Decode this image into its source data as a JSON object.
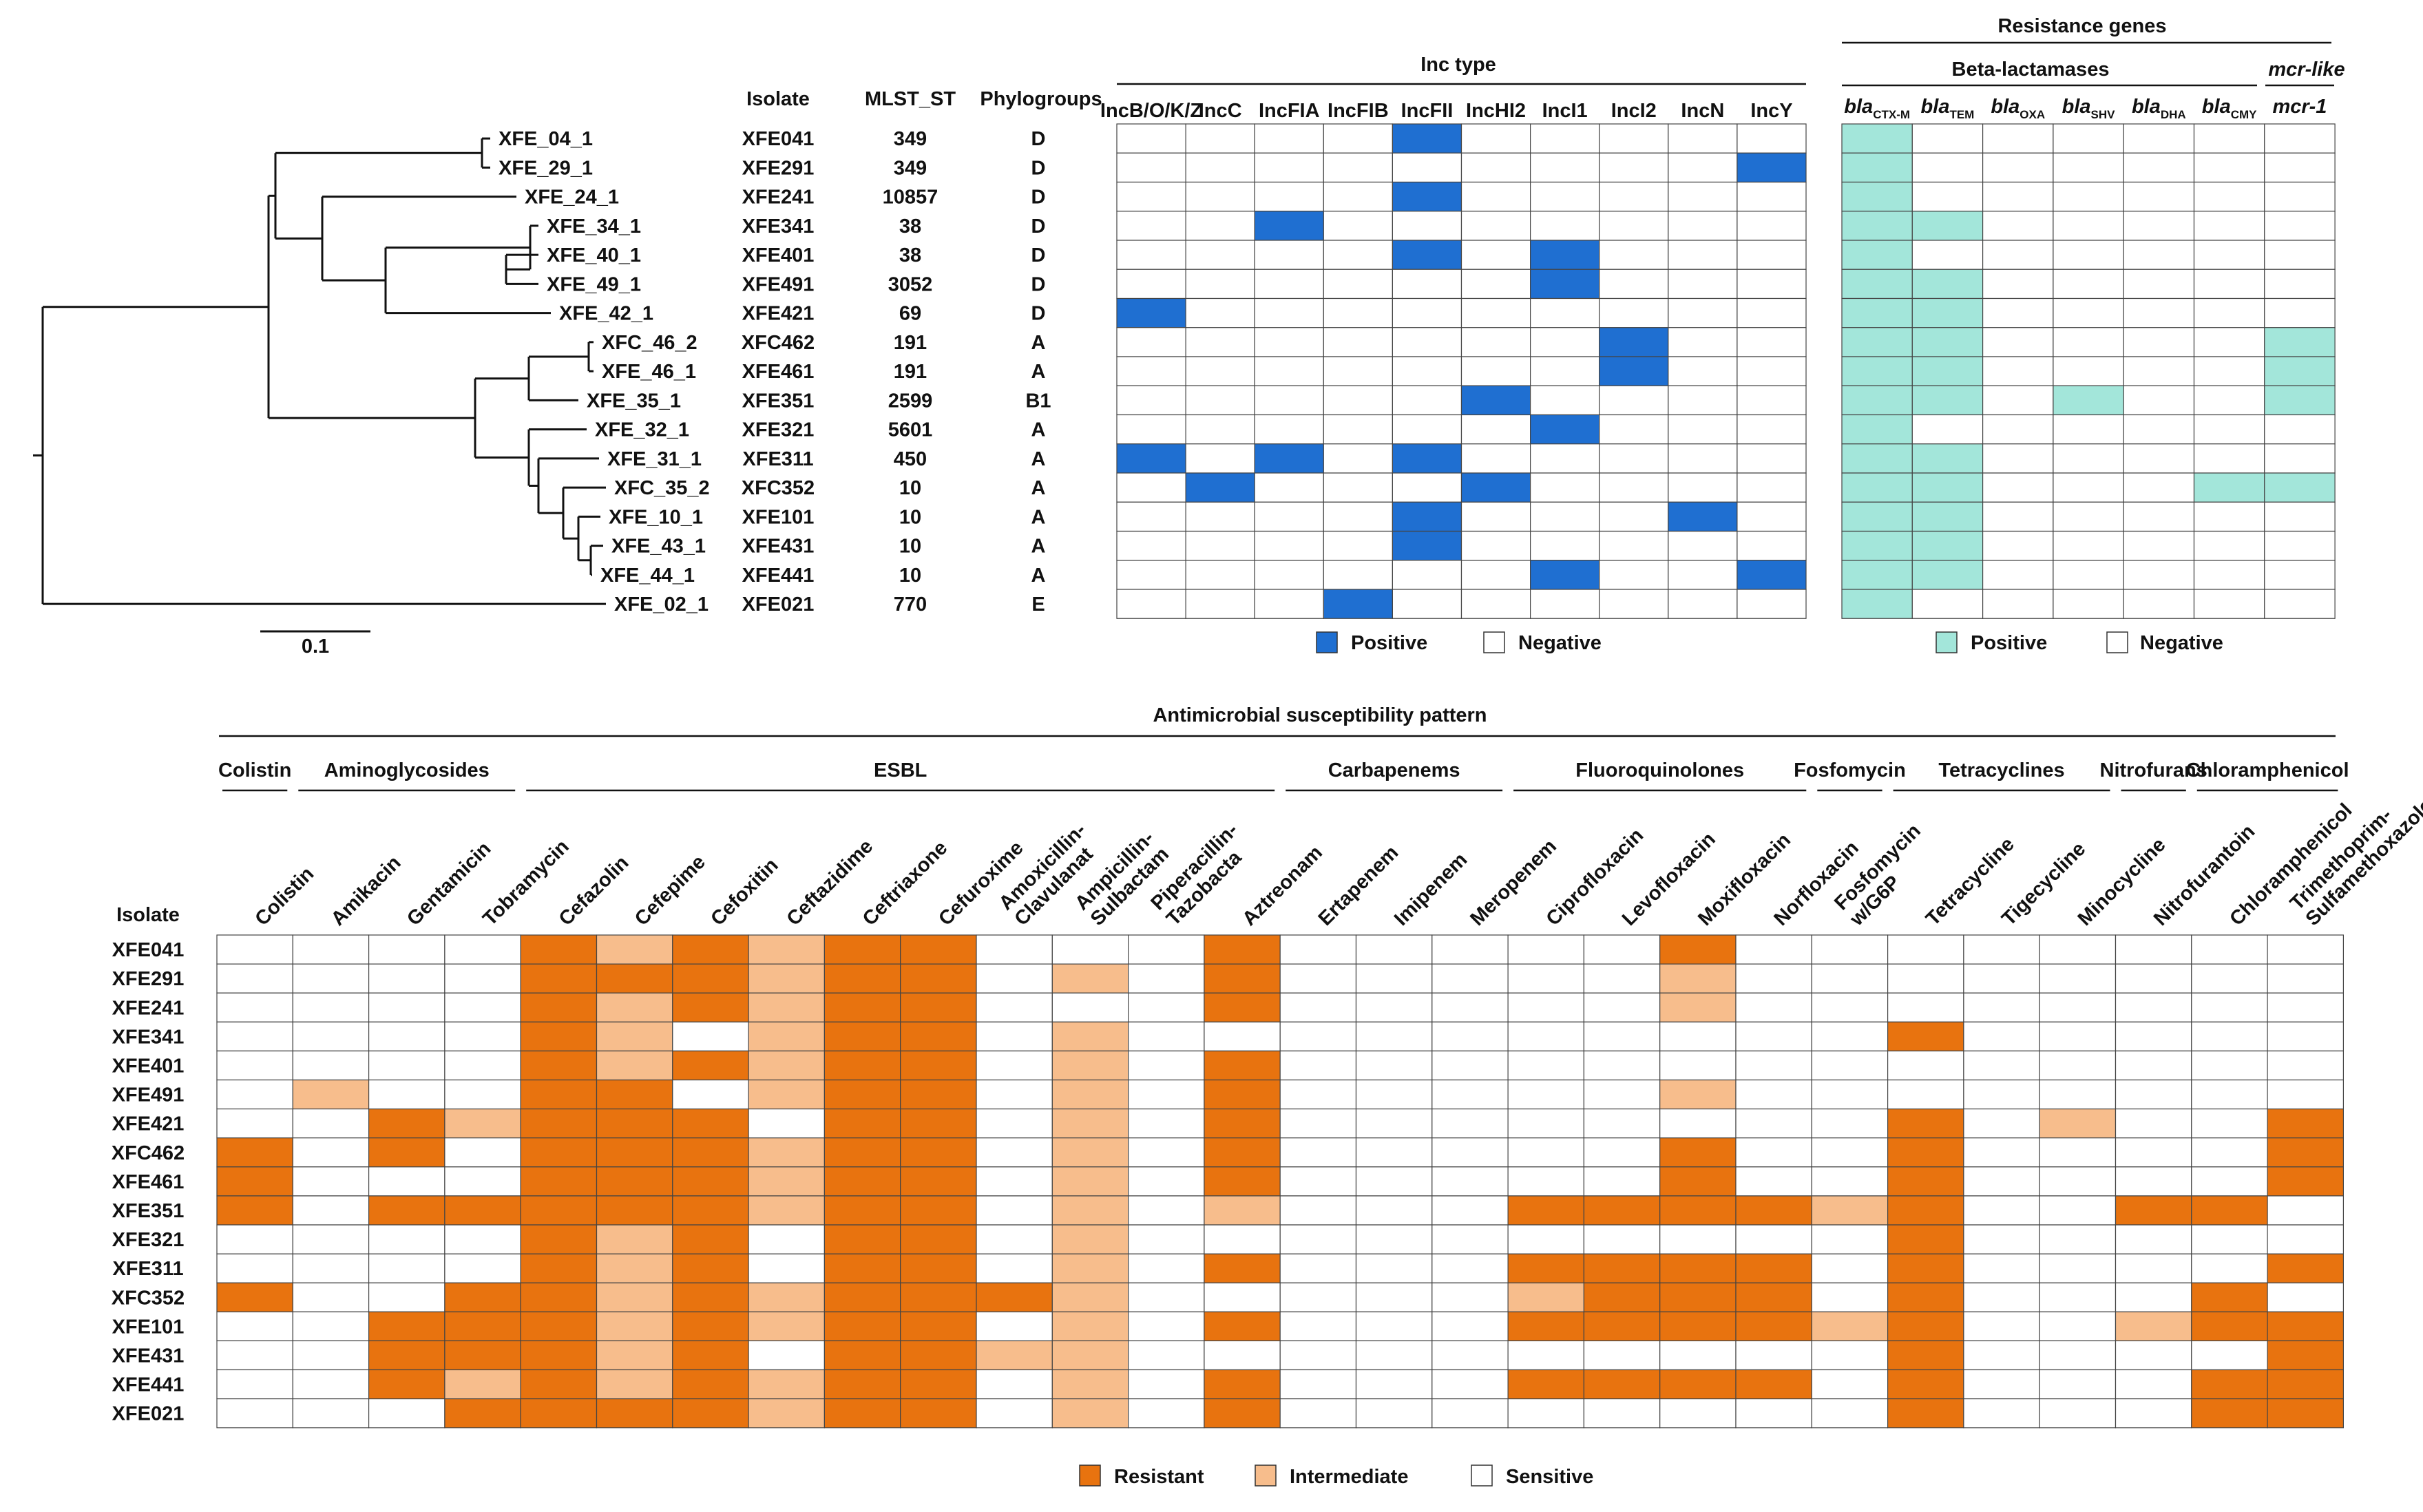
{
  "tree": {
    "tips": [
      "XFE_04_1",
      "XFE_29_1",
      "XFE_24_1",
      "XFE_34_1",
      "XFE_40_1",
      "XFE_49_1",
      "XFE_42_1",
      "XFC_46_2",
      "XFE_46_1",
      "XFE_35_1",
      "XFE_32_1",
      "XFE_31_1",
      "XFC_35_2",
      "XFE_10_1",
      "XFE_43_1",
      "XFE_44_1",
      "XFE_02_1"
    ],
    "scale_label": "0.1"
  },
  "table_headers": {
    "isolate": "Isolate",
    "mlst": "MLST_ST",
    "phylogroups": "Phylogroups"
  },
  "isolates": [
    "XFE041",
    "XFE291",
    "XFE241",
    "XFE341",
    "XFE401",
    "XFE491",
    "XFE421",
    "XFC462",
    "XFE461",
    "XFE351",
    "XFE321",
    "XFE311",
    "XFC352",
    "XFE101",
    "XFE431",
    "XFE441",
    "XFE021"
  ],
  "mlst": [
    "349",
    "349",
    "10857",
    "38",
    "38",
    "3052",
    "69",
    "191",
    "191",
    "2599",
    "5601",
    "450",
    "10",
    "10",
    "10",
    "10",
    "770"
  ],
  "phylogroups": [
    "D",
    "D",
    "D",
    "D",
    "D",
    "D",
    "D",
    "A",
    "A",
    "B1",
    "A",
    "A",
    "A",
    "A",
    "A",
    "A",
    "E"
  ],
  "chart_data": [
    {
      "type": "heatmap",
      "title": "Inc type",
      "columns": [
        "IncB/O/K/Z",
        "IncC",
        "IncFIA",
        "IncFIB",
        "IncFII",
        "IncHI2",
        "IncI1",
        "IncI2",
        "IncN",
        "IncY"
      ],
      "rows": [
        "XFE041",
        "XFE291",
        "XFE241",
        "XFE341",
        "XFE401",
        "XFE491",
        "XFE421",
        "XFC462",
        "XFE461",
        "XFE351",
        "XFE321",
        "XFE311",
        "XFC352",
        "XFE101",
        "XFE431",
        "XFE441",
        "XFE021"
      ],
      "values": [
        [
          0,
          0,
          0,
          0,
          1,
          0,
          0,
          0,
          0,
          0
        ],
        [
          0,
          0,
          0,
          0,
          0,
          0,
          0,
          0,
          0,
          1
        ],
        [
          0,
          0,
          0,
          0,
          1,
          0,
          0,
          0,
          0,
          0
        ],
        [
          0,
          0,
          1,
          0,
          0,
          0,
          0,
          0,
          0,
          0
        ],
        [
          0,
          0,
          0,
          0,
          1,
          0,
          1,
          0,
          0,
          0
        ],
        [
          0,
          0,
          0,
          0,
          0,
          0,
          1,
          0,
          0,
          0
        ],
        [
          1,
          0,
          0,
          0,
          0,
          0,
          0,
          0,
          0,
          0
        ],
        [
          0,
          0,
          0,
          0,
          0,
          0,
          0,
          1,
          0,
          0
        ],
        [
          0,
          0,
          0,
          0,
          0,
          0,
          0,
          1,
          0,
          0
        ],
        [
          0,
          0,
          0,
          0,
          0,
          1,
          0,
          0,
          0,
          0
        ],
        [
          0,
          0,
          0,
          0,
          0,
          0,
          1,
          0,
          0,
          0
        ],
        [
          1,
          0,
          1,
          0,
          1,
          0,
          0,
          0,
          0,
          0
        ],
        [
          0,
          1,
          0,
          0,
          0,
          1,
          0,
          0,
          0,
          0
        ],
        [
          0,
          0,
          0,
          0,
          1,
          0,
          0,
          0,
          1,
          0
        ],
        [
          0,
          0,
          0,
          0,
          1,
          0,
          0,
          0,
          0,
          0
        ],
        [
          0,
          0,
          0,
          0,
          0,
          0,
          1,
          0,
          0,
          1
        ],
        [
          0,
          0,
          0,
          1,
          0,
          0,
          0,
          0,
          0,
          0
        ]
      ],
      "legend": [
        "Positive",
        "Negative"
      ]
    },
    {
      "type": "heatmap",
      "title": "Resistance genes",
      "groups": [
        "Beta-lactamases",
        "mcr-like"
      ],
      "columns": [
        {
          "base": "bla",
          "sub": "CTX-M"
        },
        {
          "base": "bla",
          "sub": "TEM"
        },
        {
          "base": "bla",
          "sub": "OXA"
        },
        {
          "base": "bla",
          "sub": "SHV"
        },
        {
          "base": "bla",
          "sub": "DHA"
        },
        {
          "base": "bla",
          "sub": "CMY"
        },
        {
          "base": "mcr-1",
          "sub": ""
        }
      ],
      "rows": [
        "XFE041",
        "XFE291",
        "XFE241",
        "XFE341",
        "XFE401",
        "XFE491",
        "XFE421",
        "XFC462",
        "XFE461",
        "XFE351",
        "XFE321",
        "XFE311",
        "XFC352",
        "XFE101",
        "XFE431",
        "XFE441",
        "XFE021"
      ],
      "values": [
        [
          1,
          0,
          0,
          0,
          0,
          0,
          0
        ],
        [
          1,
          0,
          0,
          0,
          0,
          0,
          0
        ],
        [
          1,
          0,
          0,
          0,
          0,
          0,
          0
        ],
        [
          1,
          1,
          0,
          0,
          0,
          0,
          0
        ],
        [
          1,
          0,
          0,
          0,
          0,
          0,
          0
        ],
        [
          1,
          1,
          0,
          0,
          0,
          0,
          0
        ],
        [
          1,
          1,
          0,
          0,
          0,
          0,
          0
        ],
        [
          1,
          1,
          0,
          0,
          0,
          0,
          1
        ],
        [
          1,
          1,
          0,
          0,
          0,
          0,
          1
        ],
        [
          1,
          1,
          0,
          1,
          0,
          0,
          1
        ],
        [
          1,
          0,
          0,
          0,
          0,
          0,
          0
        ],
        [
          1,
          1,
          0,
          0,
          0,
          0,
          0
        ],
        [
          1,
          1,
          0,
          0,
          0,
          1,
          1
        ],
        [
          1,
          1,
          0,
          0,
          0,
          0,
          0
        ],
        [
          1,
          1,
          0,
          0,
          0,
          0,
          0
        ],
        [
          1,
          1,
          0,
          0,
          0,
          0,
          0
        ],
        [
          1,
          0,
          0,
          0,
          0,
          0,
          0
        ]
      ],
      "legend": [
        "Positive",
        "Negative"
      ]
    },
    {
      "type": "heatmap",
      "title": "Antimicrobial susceptibility pattern",
      "row_header": "Isolate",
      "groups": [
        {
          "name": "Colistin",
          "span": [
            0,
            0
          ]
        },
        {
          "name": "Aminoglycosides",
          "span": [
            1,
            3
          ]
        },
        {
          "name": "ESBL",
          "span": [
            4,
            13
          ]
        },
        {
          "name": "Carbapenems",
          "span": [
            14,
            16
          ]
        },
        {
          "name": "Fluoroquinolones",
          "span": [
            17,
            20
          ]
        },
        {
          "name": "Fosfomycin",
          "span": [
            21,
            21
          ]
        },
        {
          "name": "Tetracyclines",
          "span": [
            22,
            24
          ]
        },
        {
          "name": "Nitrofurans",
          "span": [
            25,
            25
          ]
        },
        {
          "name": "Chloramphenicol",
          "span": [
            26,
            27
          ]
        }
      ],
      "columns": [
        "Colistin",
        "Amikacin",
        "Gentamicin",
        "Tobramycin",
        "Cefazolin",
        "Cefepime",
        "Cefoxitin",
        "Ceftazidime",
        "Ceftriaxone",
        "Cefuroxime",
        "Amoxicillin-\nClavulanat",
        "Ampicillin-\nSulbactam",
        "Piperacillin-\nTazobacta",
        "Aztreonam",
        "Ertapenem",
        "Imipenem",
        "Meropenem",
        "Ciprofloxacin",
        "Levofloxacin",
        "Moxifloxacin",
        "Norfloxacin",
        "Fosfomycin\nw/G6P",
        "Tetracycline",
        "Tigecycline",
        "Minocycline",
        "Nitrofurantoin",
        "Chloramphenicol",
        "Trimethoprim-\nSulfamethoxazole"
      ],
      "rows": [
        "XFE041",
        "XFE291",
        "XFE241",
        "XFE341",
        "XFE401",
        "XFE491",
        "XFE421",
        "XFC462",
        "XFE461",
        "XFE351",
        "XFE321",
        "XFE311",
        "XFC352",
        "XFE101",
        "XFE431",
        "XFE441",
        "XFE021"
      ],
      "codes": {
        "R": "Resistant",
        "I": "Intermediate",
        "S": "Sensitive"
      },
      "values": [
        [
          "S",
          "S",
          "S",
          "S",
          "R",
          "I",
          "R",
          "I",
          "R",
          "R",
          "S",
          "S",
          "S",
          "R",
          "S",
          "S",
          "S",
          "S",
          "S",
          "R",
          "S",
          "S",
          "S",
          "S",
          "S",
          "S",
          "S",
          "S"
        ],
        [
          "S",
          "S",
          "S",
          "S",
          "R",
          "R",
          "R",
          "I",
          "R",
          "R",
          "S",
          "I",
          "S",
          "R",
          "S",
          "S",
          "S",
          "S",
          "S",
          "I",
          "S",
          "S",
          "S",
          "S",
          "S",
          "S",
          "S",
          "S"
        ],
        [
          "S",
          "S",
          "S",
          "S",
          "R",
          "I",
          "R",
          "I",
          "R",
          "R",
          "S",
          "S",
          "S",
          "R",
          "S",
          "S",
          "S",
          "S",
          "S",
          "I",
          "S",
          "S",
          "S",
          "S",
          "S",
          "S",
          "S",
          "S"
        ],
        [
          "S",
          "S",
          "S",
          "S",
          "R",
          "I",
          "S",
          "I",
          "R",
          "R",
          "S",
          "I",
          "S",
          "S",
          "S",
          "S",
          "S",
          "S",
          "S",
          "S",
          "S",
          "S",
          "R",
          "S",
          "S",
          "S",
          "S",
          "S"
        ],
        [
          "S",
          "S",
          "S",
          "S",
          "R",
          "I",
          "R",
          "I",
          "R",
          "R",
          "S",
          "I",
          "S",
          "R",
          "S",
          "S",
          "S",
          "S",
          "S",
          "S",
          "S",
          "S",
          "S",
          "S",
          "S",
          "S",
          "S",
          "S"
        ],
        [
          "S",
          "I",
          "S",
          "S",
          "R",
          "R",
          "S",
          "I",
          "R",
          "R",
          "S",
          "I",
          "S",
          "R",
          "S",
          "S",
          "S",
          "S",
          "S",
          "I",
          "S",
          "S",
          "S",
          "S",
          "S",
          "S",
          "S",
          "S"
        ],
        [
          "S",
          "S",
          "R",
          "I",
          "R",
          "R",
          "R",
          "S",
          "R",
          "R",
          "S",
          "I",
          "S",
          "R",
          "S",
          "S",
          "S",
          "S",
          "S",
          "S",
          "S",
          "S",
          "R",
          "S",
          "I",
          "S",
          "S",
          "R"
        ],
        [
          "R",
          "S",
          "R",
          "S",
          "R",
          "R",
          "R",
          "I",
          "R",
          "R",
          "S",
          "I",
          "S",
          "R",
          "S",
          "S",
          "S",
          "S",
          "S",
          "R",
          "S",
          "S",
          "R",
          "S",
          "S",
          "S",
          "S",
          "R"
        ],
        [
          "R",
          "S",
          "S",
          "S",
          "R",
          "R",
          "R",
          "I",
          "R",
          "R",
          "S",
          "I",
          "S",
          "R",
          "S",
          "S",
          "S",
          "S",
          "S",
          "R",
          "S",
          "S",
          "R",
          "S",
          "S",
          "S",
          "S",
          "R"
        ],
        [
          "R",
          "S",
          "R",
          "R",
          "R",
          "R",
          "R",
          "I",
          "R",
          "R",
          "S",
          "I",
          "S",
          "I",
          "S",
          "S",
          "S",
          "R",
          "R",
          "R",
          "R",
          "I",
          "R",
          "S",
          "S",
          "R",
          "R",
          "S"
        ],
        [
          "S",
          "S",
          "S",
          "S",
          "R",
          "I",
          "R",
          "S",
          "R",
          "R",
          "S",
          "I",
          "S",
          "S",
          "S",
          "S",
          "S",
          "S",
          "S",
          "S",
          "S",
          "S",
          "R",
          "S",
          "S",
          "S",
          "S",
          "S"
        ],
        [
          "S",
          "S",
          "S",
          "S",
          "R",
          "I",
          "R",
          "S",
          "R",
          "R",
          "S",
          "I",
          "S",
          "R",
          "S",
          "S",
          "S",
          "R",
          "R",
          "R",
          "R",
          "S",
          "R",
          "S",
          "S",
          "S",
          "S",
          "R"
        ],
        [
          "R",
          "S",
          "S",
          "R",
          "R",
          "I",
          "R",
          "I",
          "R",
          "R",
          "R",
          "I",
          "S",
          "S",
          "S",
          "S",
          "S",
          "I",
          "R",
          "R",
          "R",
          "S",
          "R",
          "S",
          "S",
          "S",
          "R",
          "S"
        ],
        [
          "S",
          "S",
          "R",
          "R",
          "R",
          "I",
          "R",
          "I",
          "R",
          "R",
          "S",
          "I",
          "S",
          "R",
          "S",
          "S",
          "S",
          "R",
          "R",
          "R",
          "R",
          "I",
          "R",
          "S",
          "S",
          "I",
          "R",
          "R"
        ],
        [
          "S",
          "S",
          "R",
          "R",
          "R",
          "I",
          "R",
          "S",
          "R",
          "R",
          "I",
          "I",
          "S",
          "S",
          "S",
          "S",
          "S",
          "S",
          "S",
          "S",
          "S",
          "S",
          "R",
          "S",
          "S",
          "S",
          "S",
          "R"
        ],
        [
          "S",
          "S",
          "R",
          "I",
          "R",
          "I",
          "R",
          "I",
          "R",
          "R",
          "S",
          "I",
          "S",
          "R",
          "S",
          "S",
          "S",
          "R",
          "R",
          "R",
          "R",
          "S",
          "R",
          "S",
          "S",
          "S",
          "R",
          "R"
        ],
        [
          "S",
          "S",
          "S",
          "R",
          "R",
          "R",
          "R",
          "I",
          "R",
          "R",
          "S",
          "I",
          "S",
          "R",
          "S",
          "S",
          "S",
          "S",
          "S",
          "S",
          "S",
          "S",
          "R",
          "S",
          "S",
          "S",
          "R",
          "R"
        ]
      ],
      "legend": [
        "Resistant",
        "Intermediate",
        "Sensitive"
      ]
    }
  ],
  "colors": {
    "inc_positive": "#1f6fd1",
    "gene_positive": "#a3e6da",
    "resistant": "#e8730f",
    "intermediate": "#f7bd8c",
    "sensitive": "#ffffff",
    "grid": "#444444"
  }
}
